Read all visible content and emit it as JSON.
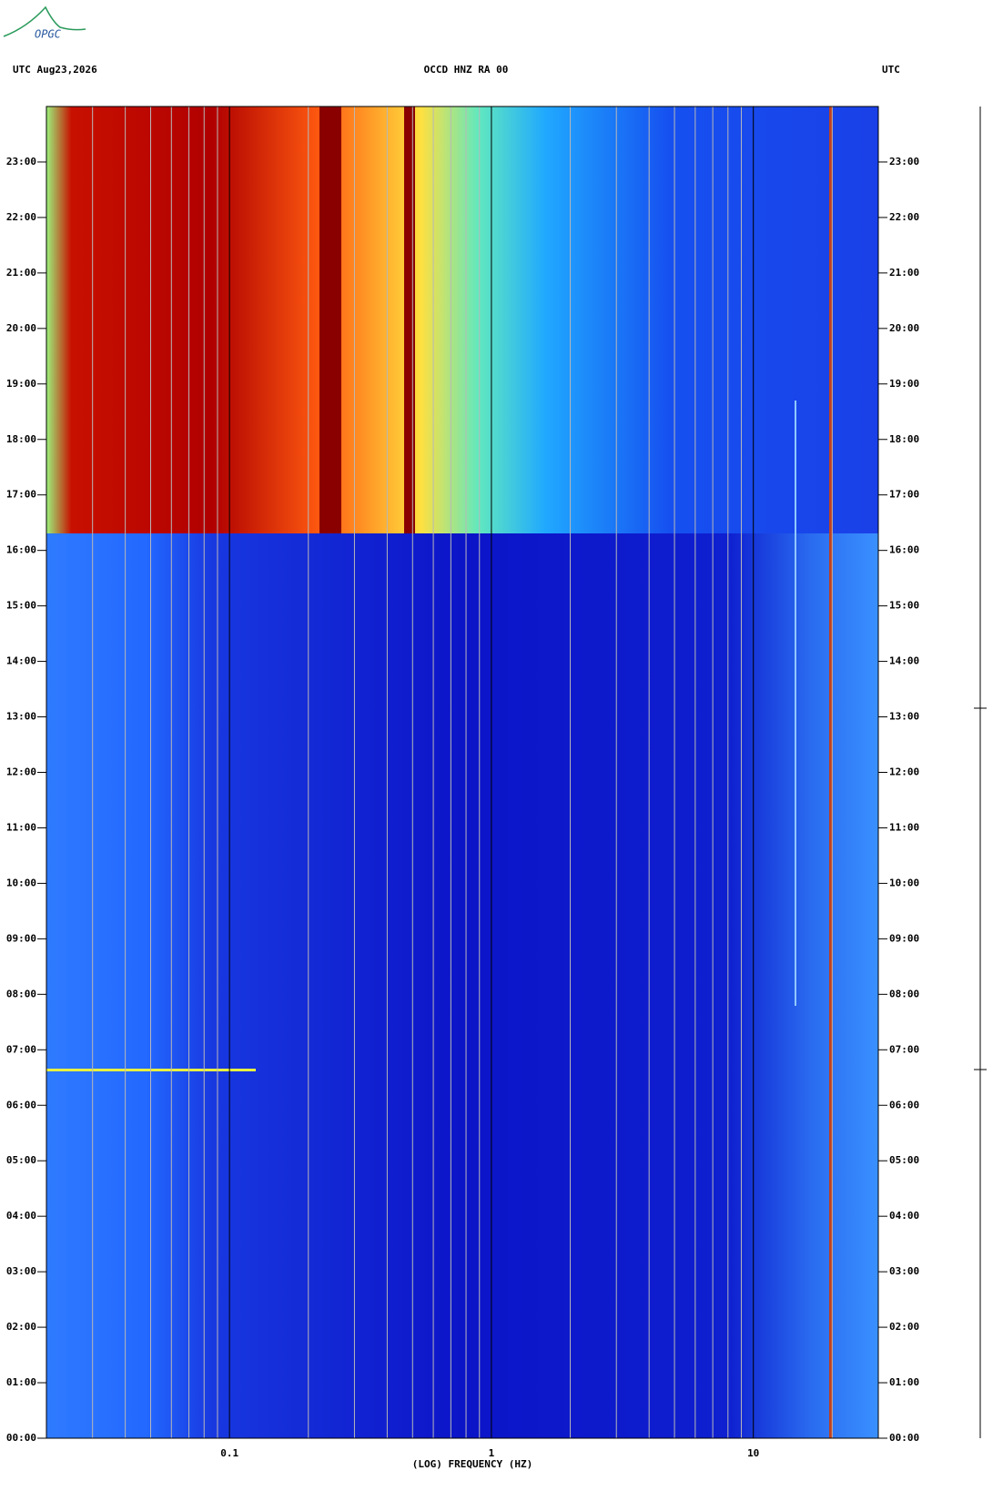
{
  "chart_data": {
    "type": "spectrogram",
    "title": "OCCD HNZ RA 00",
    "left_header": "UTC  Aug23,2026",
    "right_header": "UTC",
    "logo": "OPGC",
    "xlabel": "(LOG) FREQUENCY (HZ)",
    "xscale": "log",
    "xlim": [
      0.02,
      30
    ],
    "xticks": [
      0.1,
      1,
      10
    ],
    "xminorticks": [
      0.03,
      0.04,
      0.05,
      0.06,
      0.07,
      0.08,
      0.09,
      0.2,
      0.3,
      0.4,
      0.5,
      0.6,
      0.7,
      0.8,
      0.9,
      2,
      3,
      4,
      5,
      6,
      7,
      8,
      9,
      20,
      30
    ],
    "ylim": [
      0,
      24
    ],
    "yticks": [
      {
        "value": 0,
        "label": "00:00"
      },
      {
        "value": 1,
        "label": "01:00"
      },
      {
        "value": 2,
        "label": "02:00"
      },
      {
        "value": 3,
        "label": "03:00"
      },
      {
        "value": 4,
        "label": "04:00"
      },
      {
        "value": 5,
        "label": "05:00"
      },
      {
        "value": 6,
        "label": "06:00"
      },
      {
        "value": 7,
        "label": "07:00"
      },
      {
        "value": 8,
        "label": "08:00"
      },
      {
        "value": 9,
        "label": "09:00"
      },
      {
        "value": 10,
        "label": "10:00"
      },
      {
        "value": 11,
        "label": "11:00"
      },
      {
        "value": 12,
        "label": "12:00"
      },
      {
        "value": 13,
        "label": "13:00"
      },
      {
        "value": 14,
        "label": "14:00"
      },
      {
        "value": 15,
        "label": "15:00"
      },
      {
        "value": 16,
        "label": "16:00"
      },
      {
        "value": 17,
        "label": "17:00"
      },
      {
        "value": 18,
        "label": "18:00"
      },
      {
        "value": 19,
        "label": "19:00"
      },
      {
        "value": 20,
        "label": "20:00"
      },
      {
        "value": 21,
        "label": "21:00"
      },
      {
        "value": 22,
        "label": "22:00"
      },
      {
        "value": 23,
        "label": "23:00"
      }
    ]
  }
}
